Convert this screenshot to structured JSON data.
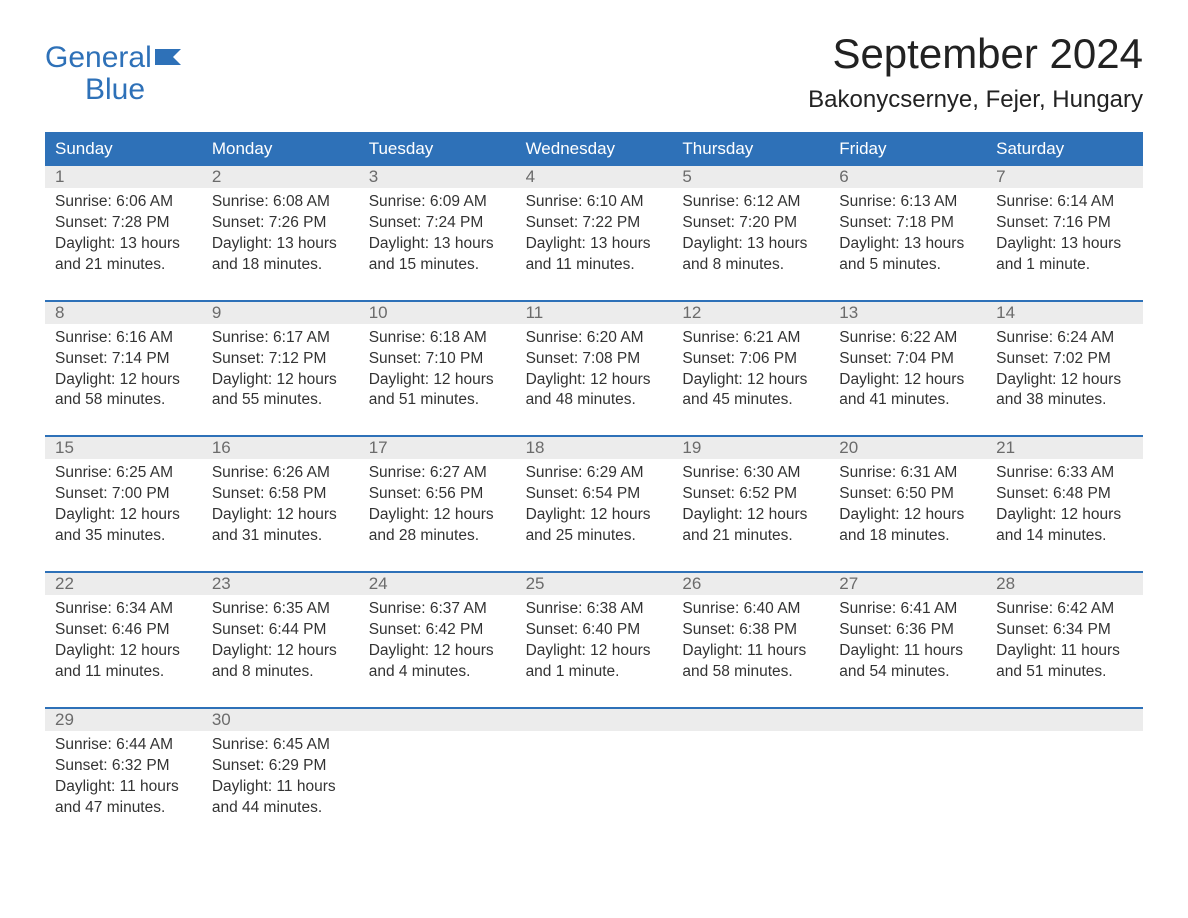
{
  "logo": {
    "line1": "General",
    "line2": "Blue"
  },
  "title": "September 2024",
  "location": "Bakonycsernye, Fejer, Hungary",
  "colors": {
    "header_bg": "#2e71b8",
    "header_text": "#ffffff",
    "daynum_bg": "#ececec",
    "daynum_text": "#6b6b6b",
    "body_text": "#333333",
    "logo_color": "#2e71b8"
  },
  "daynames": [
    "Sunday",
    "Monday",
    "Tuesday",
    "Wednesday",
    "Thursday",
    "Friday",
    "Saturday"
  ],
  "weeks": [
    [
      {
        "n": "1",
        "sr": "Sunrise: 6:06 AM",
        "ss": "Sunset: 7:28 PM",
        "d1": "Daylight: 13 hours",
        "d2": "and 21 minutes."
      },
      {
        "n": "2",
        "sr": "Sunrise: 6:08 AM",
        "ss": "Sunset: 7:26 PM",
        "d1": "Daylight: 13 hours",
        "d2": "and 18 minutes."
      },
      {
        "n": "3",
        "sr": "Sunrise: 6:09 AM",
        "ss": "Sunset: 7:24 PM",
        "d1": "Daylight: 13 hours",
        "d2": "and 15 minutes."
      },
      {
        "n": "4",
        "sr": "Sunrise: 6:10 AM",
        "ss": "Sunset: 7:22 PM",
        "d1": "Daylight: 13 hours",
        "d2": "and 11 minutes."
      },
      {
        "n": "5",
        "sr": "Sunrise: 6:12 AM",
        "ss": "Sunset: 7:20 PM",
        "d1": "Daylight: 13 hours",
        "d2": "and 8 minutes."
      },
      {
        "n": "6",
        "sr": "Sunrise: 6:13 AM",
        "ss": "Sunset: 7:18 PM",
        "d1": "Daylight: 13 hours",
        "d2": "and 5 minutes."
      },
      {
        "n": "7",
        "sr": "Sunrise: 6:14 AM",
        "ss": "Sunset: 7:16 PM",
        "d1": "Daylight: 13 hours",
        "d2": "and 1 minute."
      }
    ],
    [
      {
        "n": "8",
        "sr": "Sunrise: 6:16 AM",
        "ss": "Sunset: 7:14 PM",
        "d1": "Daylight: 12 hours",
        "d2": "and 58 minutes."
      },
      {
        "n": "9",
        "sr": "Sunrise: 6:17 AM",
        "ss": "Sunset: 7:12 PM",
        "d1": "Daylight: 12 hours",
        "d2": "and 55 minutes."
      },
      {
        "n": "10",
        "sr": "Sunrise: 6:18 AM",
        "ss": "Sunset: 7:10 PM",
        "d1": "Daylight: 12 hours",
        "d2": "and 51 minutes."
      },
      {
        "n": "11",
        "sr": "Sunrise: 6:20 AM",
        "ss": "Sunset: 7:08 PM",
        "d1": "Daylight: 12 hours",
        "d2": "and 48 minutes."
      },
      {
        "n": "12",
        "sr": "Sunrise: 6:21 AM",
        "ss": "Sunset: 7:06 PM",
        "d1": "Daylight: 12 hours",
        "d2": "and 45 minutes."
      },
      {
        "n": "13",
        "sr": "Sunrise: 6:22 AM",
        "ss": "Sunset: 7:04 PM",
        "d1": "Daylight: 12 hours",
        "d2": "and 41 minutes."
      },
      {
        "n": "14",
        "sr": "Sunrise: 6:24 AM",
        "ss": "Sunset: 7:02 PM",
        "d1": "Daylight: 12 hours",
        "d2": "and 38 minutes."
      }
    ],
    [
      {
        "n": "15",
        "sr": "Sunrise: 6:25 AM",
        "ss": "Sunset: 7:00 PM",
        "d1": "Daylight: 12 hours",
        "d2": "and 35 minutes."
      },
      {
        "n": "16",
        "sr": "Sunrise: 6:26 AM",
        "ss": "Sunset: 6:58 PM",
        "d1": "Daylight: 12 hours",
        "d2": "and 31 minutes."
      },
      {
        "n": "17",
        "sr": "Sunrise: 6:27 AM",
        "ss": "Sunset: 6:56 PM",
        "d1": "Daylight: 12 hours",
        "d2": "and 28 minutes."
      },
      {
        "n": "18",
        "sr": "Sunrise: 6:29 AM",
        "ss": "Sunset: 6:54 PM",
        "d1": "Daylight: 12 hours",
        "d2": "and 25 minutes."
      },
      {
        "n": "19",
        "sr": "Sunrise: 6:30 AM",
        "ss": "Sunset: 6:52 PM",
        "d1": "Daylight: 12 hours",
        "d2": "and 21 minutes."
      },
      {
        "n": "20",
        "sr": "Sunrise: 6:31 AM",
        "ss": "Sunset: 6:50 PM",
        "d1": "Daylight: 12 hours",
        "d2": "and 18 minutes."
      },
      {
        "n": "21",
        "sr": "Sunrise: 6:33 AM",
        "ss": "Sunset: 6:48 PM",
        "d1": "Daylight: 12 hours",
        "d2": "and 14 minutes."
      }
    ],
    [
      {
        "n": "22",
        "sr": "Sunrise: 6:34 AM",
        "ss": "Sunset: 6:46 PM",
        "d1": "Daylight: 12 hours",
        "d2": "and 11 minutes."
      },
      {
        "n": "23",
        "sr": "Sunrise: 6:35 AM",
        "ss": "Sunset: 6:44 PM",
        "d1": "Daylight: 12 hours",
        "d2": "and 8 minutes."
      },
      {
        "n": "24",
        "sr": "Sunrise: 6:37 AM",
        "ss": "Sunset: 6:42 PM",
        "d1": "Daylight: 12 hours",
        "d2": "and 4 minutes."
      },
      {
        "n": "25",
        "sr": "Sunrise: 6:38 AM",
        "ss": "Sunset: 6:40 PM",
        "d1": "Daylight: 12 hours",
        "d2": "and 1 minute."
      },
      {
        "n": "26",
        "sr": "Sunrise: 6:40 AM",
        "ss": "Sunset: 6:38 PM",
        "d1": "Daylight: 11 hours",
        "d2": "and 58 minutes."
      },
      {
        "n": "27",
        "sr": "Sunrise: 6:41 AM",
        "ss": "Sunset: 6:36 PM",
        "d1": "Daylight: 11 hours",
        "d2": "and 54 minutes."
      },
      {
        "n": "28",
        "sr": "Sunrise: 6:42 AM",
        "ss": "Sunset: 6:34 PM",
        "d1": "Daylight: 11 hours",
        "d2": "and 51 minutes."
      }
    ],
    [
      {
        "n": "29",
        "sr": "Sunrise: 6:44 AM",
        "ss": "Sunset: 6:32 PM",
        "d1": "Daylight: 11 hours",
        "d2": "and 47 minutes."
      },
      {
        "n": "30",
        "sr": "Sunrise: 6:45 AM",
        "ss": "Sunset: 6:29 PM",
        "d1": "Daylight: 11 hours",
        "d2": "and 44 minutes."
      },
      {},
      {},
      {},
      {},
      {}
    ]
  ]
}
